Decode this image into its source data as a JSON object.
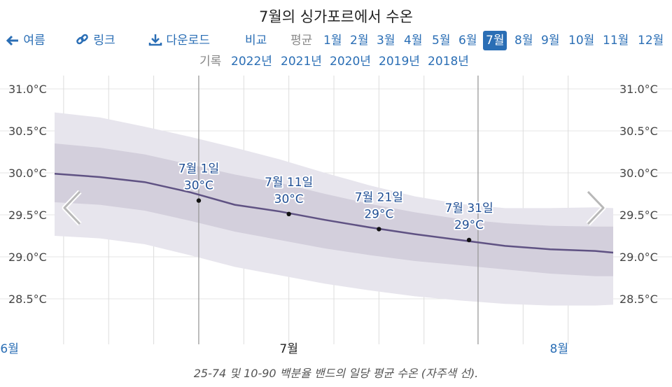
{
  "title": "7월의 싱가포르에서 수온",
  "nav": {
    "back_label": "여름",
    "link_label": "링크",
    "download_label": "다운로드",
    "compare_label": "비교",
    "average_label": "평균",
    "months": [
      "1월",
      "2월",
      "3월",
      "4월",
      "5월",
      "6월",
      "7월",
      "8월",
      "9월",
      "10월",
      "11월",
      "12월"
    ],
    "selected_month_index": 6
  },
  "records": {
    "label": "기록",
    "years": [
      "2022년",
      "2021년",
      "2020년",
      "2019년",
      "2018년"
    ]
  },
  "caption": "25-74 및 10-90 백분율 밴드의 일당 평균 수온 (자주색 선).",
  "colors": {
    "line": "#5f5283",
    "band_inner": "#d3cfdc",
    "band_outer": "#e7e5ed",
    "accent": "#2a6eb5"
  },
  "chart_data": {
    "type": "line",
    "title": "7월의 싱가포르에서 수온",
    "y_unit": "°C",
    "ylim": [
      28.0,
      31.1
    ],
    "yticks": [
      "31.0°C",
      "30.5°C",
      "30.0°C",
      "29.5°C",
      "29.0°C",
      "28.5°C"
    ],
    "ytick_values": [
      31.0,
      30.5,
      30.0,
      29.5,
      29.0,
      28.5
    ],
    "x_start": "2023-06-15",
    "x_end": "2023-08-16",
    "month_labels": [
      {
        "label": "6월",
        "date": "2023-06-10"
      },
      {
        "label": "7월",
        "date": "2023-07-11"
      },
      {
        "label": "8월",
        "date": "2023-08-10"
      }
    ],
    "month_starts": [
      "2023-07-01",
      "2023-08-01"
    ],
    "week_lines": [
      "2023-06-16",
      "2023-06-21",
      "2023-06-26",
      "2023-07-06",
      "2023-07-11",
      "2023-07-16",
      "2023-07-21",
      "2023-07-26",
      "2023-08-06",
      "2023-08-11"
    ],
    "grid": true,
    "series": [
      {
        "x": [
          "2023-06-15",
          "2023-06-20",
          "2023-06-25",
          "2023-06-30",
          "2023-07-05",
          "2023-07-10",
          "2023-07-15",
          "2023-07-20",
          "2023-07-25",
          "2023-07-30",
          "2023-08-04",
          "2023-08-09",
          "2023-08-14",
          "2023-08-16"
        ],
        "mean": [
          29.99,
          29.95,
          29.89,
          29.77,
          29.62,
          29.54,
          29.44,
          29.35,
          29.27,
          29.2,
          29.13,
          29.09,
          29.07,
          29.05
        ],
        "p25": [
          29.65,
          29.62,
          29.55,
          29.43,
          29.3,
          29.2,
          29.1,
          29.02,
          28.95,
          28.9,
          28.85,
          28.8,
          28.77,
          28.77
        ],
        "p75": [
          30.35,
          30.3,
          30.22,
          30.1,
          29.98,
          29.88,
          29.75,
          29.63,
          29.53,
          29.45,
          29.4,
          29.37,
          29.36,
          29.36
        ],
        "p10": [
          29.25,
          29.22,
          29.15,
          29.02,
          28.88,
          28.78,
          28.68,
          28.6,
          28.53,
          28.48,
          28.44,
          28.42,
          28.42,
          28.43
        ],
        "p90": [
          30.72,
          30.66,
          30.55,
          30.43,
          30.3,
          30.16,
          30.0,
          29.85,
          29.72,
          29.63,
          29.58,
          29.58,
          29.59,
          29.58
        ]
      }
    ],
    "annotations": [
      {
        "date": "2023-07-01",
        "date_label": "7월 1일",
        "value": 29.67,
        "value_label": "30°C"
      },
      {
        "date": "2023-07-11",
        "date_label": "7월 11일",
        "value": 29.51,
        "value_label": "30°C"
      },
      {
        "date": "2023-07-21",
        "date_label": "7월 21일",
        "value": 29.33,
        "value_label": "29°C"
      },
      {
        "date": "2023-07-31",
        "date_label": "7월 31일",
        "value": 29.2,
        "value_label": "29°C"
      }
    ]
  }
}
